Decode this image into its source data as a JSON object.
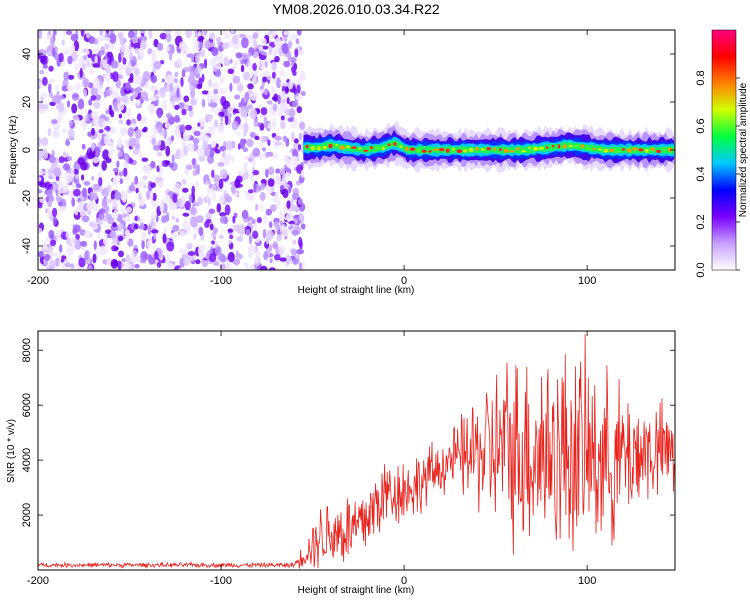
{
  "title": "YM08.2026.010.03.34.R22",
  "chart_data": [
    {
      "type": "heatmap",
      "name": "spectrogram",
      "xlabel": "Height of straight line (km)",
      "ylabel": "Frequency (Hz)",
      "xlim": [
        -200,
        148
      ],
      "ylim": [
        -50,
        50
      ],
      "x_ticks": [
        -200,
        -100,
        0,
        100
      ],
      "x_tick_labels": [
        "-200",
        "-100",
        "0",
        "100"
      ],
      "y_ticks": [
        -40,
        -20,
        0,
        20,
        40
      ],
      "y_tick_labels": [
        "-40",
        "-20",
        "0",
        "20",
        "40"
      ],
      "noise_region_x": [
        -200,
        -55
      ],
      "signal_band": {
        "x_start": -55,
        "x_end": 148,
        "center_frequency": 0,
        "half_width_hz": 3,
        "peak_points": [
          {
            "x": -47,
            "f": 1
          },
          {
            "x": -40,
            "f": 2
          },
          {
            "x": -32,
            "f": 1
          },
          {
            "x": -22,
            "f": 0
          },
          {
            "x": -12,
            "f": 1
          },
          {
            "x": -5,
            "f": 3
          },
          {
            "x": 2,
            "f": 0
          },
          {
            "x": 10,
            "f": 0
          },
          {
            "x": 20,
            "f": 0
          },
          {
            "x": 35,
            "f": 0
          },
          {
            "x": 50,
            "f": 0
          },
          {
            "x": 65,
            "f": 0
          },
          {
            "x": 80,
            "f": 1
          },
          {
            "x": 90,
            "f": 2
          },
          {
            "x": 100,
            "f": 1
          },
          {
            "x": 110,
            "f": 0
          },
          {
            "x": 120,
            "f": 0
          },
          {
            "x": 132,
            "f": 0
          },
          {
            "x": 142,
            "f": 0
          }
        ]
      },
      "colorbar": {
        "label": "Normalized spectral amplitude",
        "range": [
          0,
          1
        ],
        "ticks": [
          0.0,
          0.2,
          0.4,
          0.6,
          0.8
        ],
        "tick_labels": [
          "0.0",
          "0.2",
          "0.4",
          "0.6",
          "0.8"
        ],
        "colors": [
          "#ffffff",
          "#c8a0ff",
          "#7a00ff",
          "#0000ff",
          "#00c8ff",
          "#00ff40",
          "#d0ff00",
          "#ff8000",
          "#ff0000",
          "#ff0080"
        ]
      }
    },
    {
      "type": "line",
      "name": "snr",
      "xlabel": "Height of straight line (km)",
      "ylabel": "SNR (10 * v/v)",
      "xlim": [
        -200,
        148
      ],
      "ylim": [
        0,
        8700
      ],
      "x_ticks": [
        -200,
        -100,
        0,
        100
      ],
      "x_tick_labels": [
        "-200",
        "-100",
        "0",
        "100"
      ],
      "y_ticks": [
        2000,
        4000,
        6000,
        8000
      ],
      "y_tick_labels": [
        "2000",
        "4000",
        "6000",
        "8000"
      ],
      "color": "#e8221c",
      "envelope": [
        {
          "x": -200,
          "mean": 180,
          "spread": 100
        },
        {
          "x": -60,
          "mean": 180,
          "spread": 100
        },
        {
          "x": -45,
          "mean": 1300,
          "spread": 1500
        },
        {
          "x": -25,
          "mean": 1500,
          "spread": 1800
        },
        {
          "x": -10,
          "mean": 2800,
          "spread": 1600
        },
        {
          "x": 5,
          "mean": 3000,
          "spread": 1400
        },
        {
          "x": 25,
          "mean": 4000,
          "spread": 1200
        },
        {
          "x": 40,
          "mean": 4300,
          "spread": 2600
        },
        {
          "x": 55,
          "mean": 4400,
          "spread": 4000
        },
        {
          "x": 70,
          "mean": 4400,
          "spread": 4500
        },
        {
          "x": 95,
          "mean": 4300,
          "spread": 4600
        },
        {
          "x": 115,
          "mean": 4000,
          "spread": 3500
        },
        {
          "x": 130,
          "mean": 4300,
          "spread": 2400
        },
        {
          "x": 148,
          "mean": 4300,
          "spread": 2000
        }
      ]
    }
  ]
}
